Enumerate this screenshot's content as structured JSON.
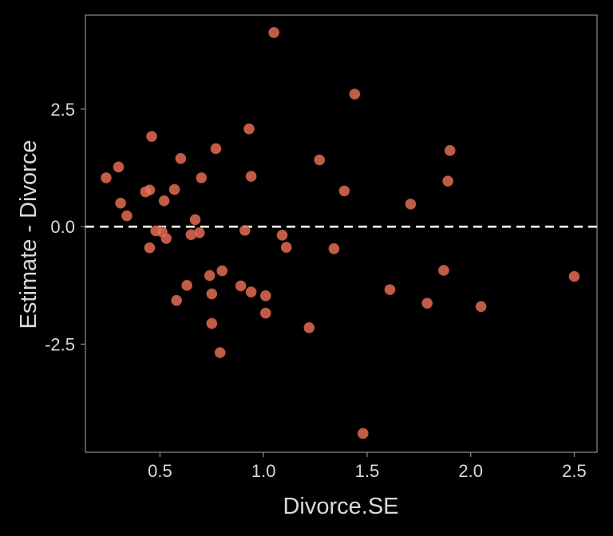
{
  "chart_data": {
    "type": "scatter",
    "title": "",
    "xlabel": "Divorce.SE",
    "ylabel": "Estimate - Divorce",
    "xlim": [
      0.14,
      2.61
    ],
    "ylim": [
      -4.8,
      4.5
    ],
    "x_ticks": [
      0.5,
      1.0,
      1.5,
      2.0,
      2.5
    ],
    "x_tick_labels": [
      "0.5",
      "1.0",
      "1.5",
      "2.0",
      "2.5"
    ],
    "y_ticks": [
      2.5,
      0.0,
      -2.5
    ],
    "y_tick_labels": [
      "2.5",
      "0.0",
      "-2.5"
    ],
    "reference_line": {
      "y": 0,
      "style": "dashed",
      "color": "#ffffff"
    },
    "grid": false,
    "legend": "none",
    "colors": {
      "background": "#000000",
      "point": "#e8735a",
      "point_edge": "#c8553d",
      "axis_text": "#d9d9d9",
      "panel_border": "#8c8c8c"
    },
    "points": [
      {
        "x": 0.24,
        "y": 1.04
      },
      {
        "x": 0.3,
        "y": 1.27
      },
      {
        "x": 0.31,
        "y": 0.5
      },
      {
        "x": 0.34,
        "y": 0.23
      },
      {
        "x": 0.43,
        "y": 0.74
      },
      {
        "x": 0.45,
        "y": 0.78
      },
      {
        "x": 0.45,
        "y": -0.45
      },
      {
        "x": 0.46,
        "y": 1.92
      },
      {
        "x": 0.48,
        "y": -0.09
      },
      {
        "x": 0.51,
        "y": -0.11
      },
      {
        "x": 0.52,
        "y": 0.55
      },
      {
        "x": 0.53,
        "y": -0.25
      },
      {
        "x": 0.57,
        "y": 0.79
      },
      {
        "x": 0.58,
        "y": -1.57
      },
      {
        "x": 0.6,
        "y": 1.45
      },
      {
        "x": 0.63,
        "y": -1.25
      },
      {
        "x": 0.65,
        "y": -0.17
      },
      {
        "x": 0.67,
        "y": 0.15
      },
      {
        "x": 0.69,
        "y": -0.13
      },
      {
        "x": 0.7,
        "y": 1.04
      },
      {
        "x": 0.74,
        "y": -1.04
      },
      {
        "x": 0.75,
        "y": -1.43
      },
      {
        "x": 0.75,
        "y": -2.06
      },
      {
        "x": 0.77,
        "y": 1.66
      },
      {
        "x": 0.79,
        "y": -2.68
      },
      {
        "x": 0.8,
        "y": -0.94
      },
      {
        "x": 0.89,
        "y": -1.26
      },
      {
        "x": 0.91,
        "y": -0.08
      },
      {
        "x": 0.93,
        "y": 2.08
      },
      {
        "x": 0.94,
        "y": 1.07
      },
      {
        "x": 0.94,
        "y": -1.39
      },
      {
        "x": 1.01,
        "y": -1.47
      },
      {
        "x": 1.01,
        "y": -1.84
      },
      {
        "x": 1.05,
        "y": 4.13
      },
      {
        "x": 1.09,
        "y": -0.18
      },
      {
        "x": 1.11,
        "y": -0.44
      },
      {
        "x": 1.22,
        "y": -2.15
      },
      {
        "x": 1.27,
        "y": 1.42
      },
      {
        "x": 1.34,
        "y": -0.47
      },
      {
        "x": 1.39,
        "y": 0.76
      },
      {
        "x": 1.44,
        "y": 2.82
      },
      {
        "x": 1.48,
        "y": -4.4
      },
      {
        "x": 1.61,
        "y": -1.34
      },
      {
        "x": 1.71,
        "y": 0.48
      },
      {
        "x": 1.79,
        "y": -1.63
      },
      {
        "x": 1.87,
        "y": -0.93
      },
      {
        "x": 1.89,
        "y": 0.97
      },
      {
        "x": 1.9,
        "y": 1.62
      },
      {
        "x": 2.05,
        "y": -1.7
      },
      {
        "x": 2.5,
        "y": -1.06
      }
    ]
  }
}
